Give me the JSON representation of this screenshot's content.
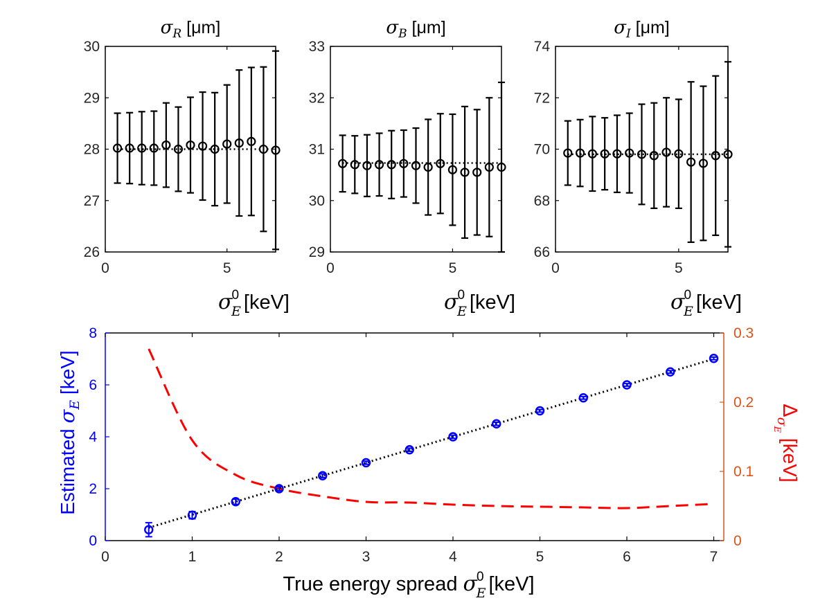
{
  "colors": {
    "axis": "#000000",
    "estimate": "#0000ff",
    "delta": "#ff0000",
    "right_axis": "#d95319",
    "trend": "#000000"
  },
  "chart_data": [
    {
      "type": "scatter",
      "title": {
        "symbol": "σ",
        "sub": "R",
        "unit": "[μm]"
      },
      "xlabel": {
        "symbol": "σ",
        "sub": "E",
        "sup": "0",
        "unit": "[keV]"
      },
      "xlim": [
        0,
        7
      ],
      "ylim": [
        26,
        30
      ],
      "xticks": [
        "0",
        "5"
      ],
      "yticks": [
        "26",
        "27",
        "28",
        "29",
        "30"
      ],
      "reference_line": 28.0,
      "x": [
        0.5,
        1.0,
        1.5,
        2.0,
        2.5,
        3.0,
        3.5,
        4.0,
        4.5,
        5.0,
        5.5,
        6.0,
        6.5,
        7.0
      ],
      "y": [
        28.02,
        28.02,
        28.02,
        28.02,
        28.08,
        28.0,
        28.08,
        28.06,
        28.0,
        28.1,
        28.12,
        28.15,
        28.0,
        27.98
      ],
      "err": [
        0.68,
        0.69,
        0.71,
        0.72,
        0.82,
        0.82,
        0.93,
        1.05,
        1.1,
        1.15,
        1.42,
        1.44,
        1.6,
        1.93
      ]
    },
    {
      "type": "scatter",
      "title": {
        "symbol": "σ",
        "sub": "B",
        "unit": "[μm]"
      },
      "xlabel": {
        "symbol": "σ",
        "sub": "E",
        "sup": "0",
        "unit": "[keV]"
      },
      "xlim": [
        0,
        7
      ],
      "ylim": [
        29,
        33
      ],
      "xticks": [
        "0",
        "5"
      ],
      "yticks": [
        "29",
        "30",
        "31",
        "32",
        "33"
      ],
      "reference_line": 30.73,
      "x": [
        0.5,
        1.0,
        1.5,
        2.0,
        2.5,
        3.0,
        3.5,
        4.0,
        4.5,
        5.0,
        5.5,
        6.0,
        6.5,
        7.0
      ],
      "y": [
        30.72,
        30.7,
        30.68,
        30.7,
        30.7,
        30.72,
        30.68,
        30.65,
        30.72,
        30.6,
        30.55,
        30.55,
        30.65,
        30.65
      ],
      "err": [
        0.55,
        0.56,
        0.6,
        0.61,
        0.66,
        0.65,
        0.73,
        0.93,
        0.97,
        1.08,
        1.28,
        1.22,
        1.35,
        1.65
      ]
    },
    {
      "type": "scatter",
      "title": {
        "symbol": "σ",
        "sub": "I",
        "unit": "[μm]"
      },
      "xlabel": {
        "symbol": "σ",
        "sub": "E",
        "sup": "0",
        "unit": "[keV]"
      },
      "xlim": [
        0,
        7
      ],
      "ylim": [
        66,
        74
      ],
      "xticks": [
        "0",
        "5"
      ],
      "yticks": [
        "66",
        "68",
        "70",
        "72",
        "74"
      ],
      "reference_line": 69.8,
      "x": [
        0.5,
        1.0,
        1.5,
        2.0,
        2.5,
        3.0,
        3.5,
        4.0,
        4.5,
        5.0,
        5.5,
        6.0,
        6.5,
        7.0
      ],
      "y": [
        69.85,
        69.85,
        69.82,
        69.82,
        69.82,
        69.85,
        69.8,
        69.75,
        69.88,
        69.82,
        69.5,
        69.45,
        69.75,
        69.8
      ],
      "err": [
        1.25,
        1.3,
        1.45,
        1.4,
        1.5,
        1.55,
        1.95,
        2.05,
        2.12,
        2.12,
        3.12,
        3.0,
        3.1,
        3.6
      ]
    },
    {
      "type": "line",
      "xlabel": {
        "text": "True energy spread ",
        "symbol": "σ",
        "sub": "E",
        "sup": "0",
        "unit": "[keV]"
      },
      "ylabel_left": {
        "text": "Estimated ",
        "symbol": "σ",
        "sub": "E",
        "unit": " [keV]"
      },
      "ylabel_right": {
        "symbol": "Δ",
        "sub": "σ",
        "subsub": "E",
        "unit": " [keV]"
      },
      "xlim": [
        0,
        7
      ],
      "ylim_left": [
        0,
        8
      ],
      "ylim_right": [
        0,
        0.3
      ],
      "xticks": [
        "0",
        "1",
        "2",
        "3",
        "4",
        "5",
        "6",
        "7"
      ],
      "yticks_left": [
        "0",
        "2",
        "4",
        "6",
        "8"
      ],
      "yticks_right": [
        "0",
        "0.1",
        "0.2",
        "0.3"
      ],
      "series": [
        {
          "name": "Estimated σ_E",
          "axis": "left",
          "style": "markers-errorbars",
          "x": [
            0.5,
            1.0,
            1.5,
            2.0,
            2.5,
            3.0,
            3.5,
            4.0,
            4.5,
            5.0,
            5.5,
            6.0,
            6.5,
            7.0
          ],
          "y": [
            0.42,
            0.98,
            1.5,
            2.0,
            2.5,
            3.0,
            3.5,
            4.0,
            4.5,
            5.0,
            5.5,
            6.0,
            6.5,
            7.02
          ],
          "err": [
            0.27,
            0.14,
            0.1,
            0.08,
            0.07,
            0.06,
            0.06,
            0.06,
            0.06,
            0.05,
            0.05,
            0.05,
            0.05,
            0.05
          ]
        },
        {
          "name": "y = x",
          "axis": "left",
          "style": "dotted",
          "x": [
            0.5,
            7.0
          ],
          "y": [
            0.5,
            7.0
          ]
        },
        {
          "name": "Δσ_E",
          "axis": "right",
          "style": "dashed",
          "x": [
            0.5,
            1.0,
            1.5,
            2.0,
            2.5,
            3.0,
            3.5,
            4.0,
            4.5,
            5.0,
            5.5,
            6.0,
            6.5,
            7.0
          ],
          "y": [
            0.277,
            0.145,
            0.095,
            0.075,
            0.064,
            0.056,
            0.055,
            0.052,
            0.05,
            0.049,
            0.048,
            0.047,
            0.05,
            0.053
          ]
        }
      ]
    }
  ]
}
